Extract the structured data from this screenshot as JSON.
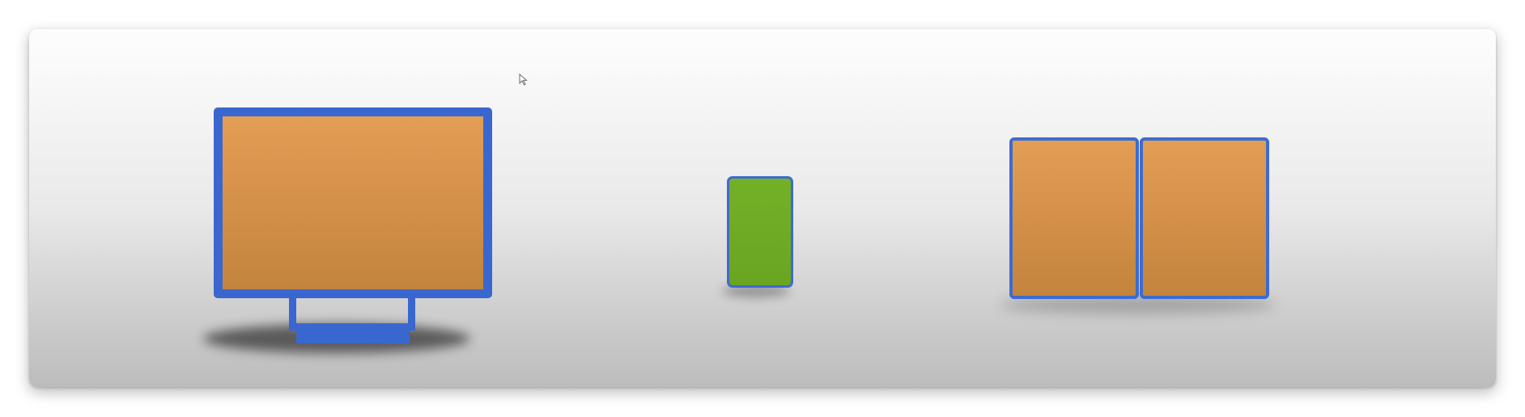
{
  "scene": {
    "background": "light-gray-gradient",
    "colors": {
      "frame_blue": "#3a67cf",
      "screen_orange": "#d49049",
      "screen_green": "#6aa522"
    },
    "devices": [
      {
        "name": "desktop-monitor",
        "screen_color": "orange"
      },
      {
        "name": "phone",
        "screen_color": "green"
      },
      {
        "name": "dual-screen-tablet",
        "screen_color": "orange",
        "panels": 2
      }
    ],
    "icons": [
      "mouse-cursor-icon"
    ]
  }
}
